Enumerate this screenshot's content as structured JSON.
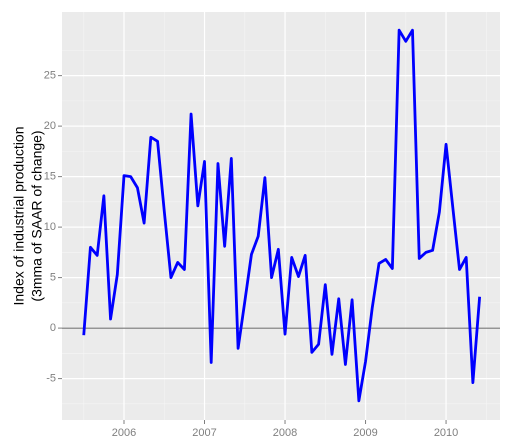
{
  "chart_data": {
    "type": "line",
    "ylabel": [
      "Index of industrial production",
      "(3mma of SAAR of change)"
    ],
    "x": [
      2005.5,
      2005.583,
      2005.667,
      2005.75,
      2005.833,
      2005.917,
      2006,
      2006.083,
      2006.167,
      2006.25,
      2006.333,
      2006.417,
      2006.5,
      2006.583,
      2006.667,
      2006.75,
      2006.833,
      2006.917,
      2007,
      2007.083,
      2007.167,
      2007.25,
      2007.333,
      2007.417,
      2007.5,
      2007.583,
      2007.667,
      2007.75,
      2007.833,
      2007.917,
      2008,
      2008.083,
      2008.167,
      2008.25,
      2008.333,
      2008.417,
      2008.5,
      2008.583,
      2008.667,
      2008.75,
      2008.833,
      2008.917,
      2009,
      2009.083,
      2009.167,
      2009.25,
      2009.333,
      2009.417,
      2009.5,
      2009.583,
      2009.667,
      2009.75,
      2009.833,
      2009.917,
      2010,
      2010.083,
      2010.167,
      2010.25,
      2010.333,
      2010.417
    ],
    "series": [
      {
        "color": "#0000ff",
        "values": [
          -0.7,
          8,
          7.2,
          13.1,
          0.9,
          5.3,
          15.1,
          15,
          13.9,
          10.4,
          18.9,
          18.5,
          11.6,
          5,
          6.5,
          5.8,
          21.2,
          12.1,
          16.5,
          -3.4,
          16.3,
          8.1,
          16.8,
          -2,
          2.6,
          7.3,
          9.1,
          14.9,
          5,
          7.8,
          -0.6,
          7,
          5.1,
          7.2,
          -2.4,
          -1.6,
          4.3,
          -2.6,
          2.9,
          -3.6,
          2.8,
          -7.2,
          -3.3,
          2,
          6.4,
          6.8,
          5.9,
          29.5,
          28.4,
          29.5,
          6.9,
          7.5,
          7.7,
          11.5,
          18.2,
          12,
          5.8,
          7,
          -5.4,
          3.1
        ]
      }
    ],
    "hline": 0,
    "xlim": [
      2005.23,
      2010.67
    ],
    "xticks": [
      2006,
      2007,
      2008,
      2009,
      2010
    ],
    "ylim": [
      -9.1,
      31.3
    ],
    "yticks": [
      -5,
      0,
      5,
      10,
      15,
      20,
      25
    ],
    "grid": true
  }
}
